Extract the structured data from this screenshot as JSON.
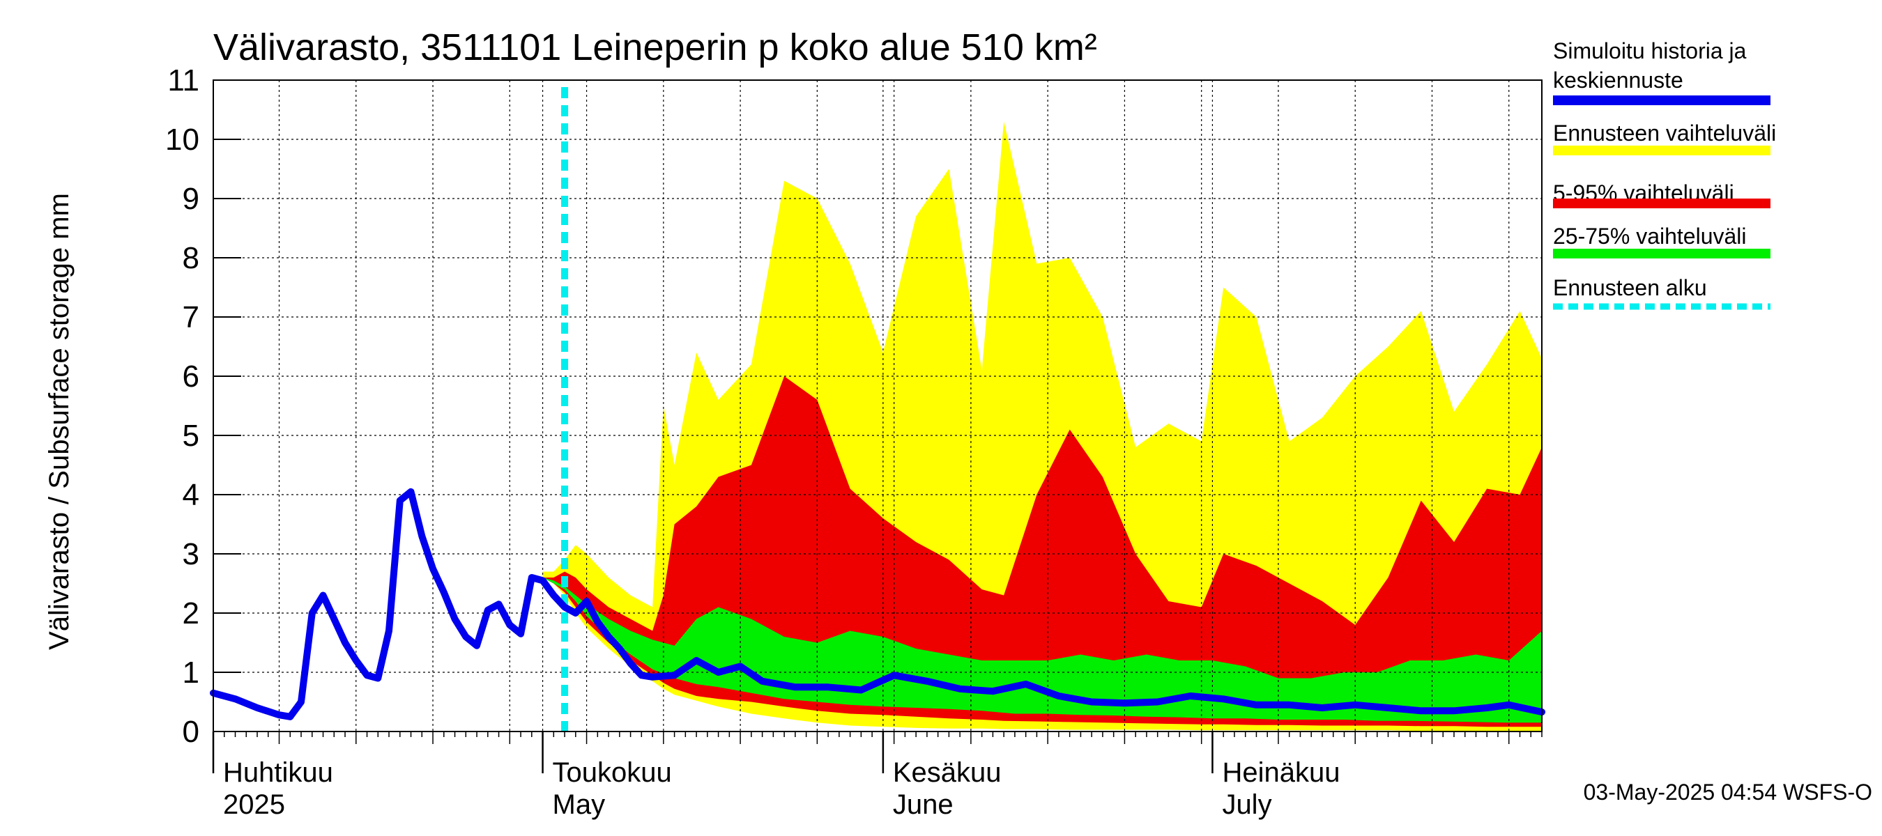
{
  "chart_data": {
    "type": "area",
    "title": "Välivarasto, 3511101 Leineperin p koko alue 510 km²",
    "ylabel": "Välivarasto / Subsurface storage  mm",
    "ylim": [
      0,
      11
    ],
    "yticks": [
      0,
      1,
      2,
      3,
      4,
      5,
      6,
      7,
      8,
      9,
      10,
      11
    ],
    "x_range": [
      "2025-04-01",
      "2025-07-31"
    ],
    "month_labels": [
      {
        "fi": "Huhtikuu",
        "en": "2025",
        "date": "2025-04-01"
      },
      {
        "fi": "Toukokuu",
        "en": "May",
        "date": "2025-05-01"
      },
      {
        "fi": "Kesäkuu",
        "en": "June",
        "date": "2025-06-01"
      },
      {
        "fi": "Heinäkuu",
        "en": "July",
        "date": "2025-07-01"
      }
    ],
    "forecast_start": "2025-05-03",
    "legend": [
      {
        "label": "Simuloitu historia ja",
        "label2": "keskiennuste",
        "color": "#0000ee",
        "style": "line"
      },
      {
        "label": "Ennusteen vaihteluväli",
        "color": "#ffff00",
        "style": "band"
      },
      {
        "label": "5-95% vaihteluväli",
        "color": "#ee0000",
        "style": "band"
      },
      {
        "label": "25-75% vaihteluväli",
        "color": "#00ee00",
        "style": "band"
      },
      {
        "label": "Ennusteen alku",
        "color": "#00eeee",
        "style": "dashed"
      }
    ],
    "series": [
      {
        "name": "Simuloitu historia ja keskiennuste",
        "x": [
          "2025-04-01",
          "2025-04-03",
          "2025-04-05",
          "2025-04-07",
          "2025-04-08",
          "2025-04-09",
          "2025-04-10",
          "2025-04-11",
          "2025-04-12",
          "2025-04-13",
          "2025-04-14",
          "2025-04-15",
          "2025-04-16",
          "2025-04-17",
          "2025-04-18",
          "2025-04-19",
          "2025-04-20",
          "2025-04-21",
          "2025-04-22",
          "2025-04-23",
          "2025-04-24",
          "2025-04-25",
          "2025-04-26",
          "2025-04-27",
          "2025-04-28",
          "2025-04-29",
          "2025-04-30",
          "2025-05-01",
          "2025-05-02",
          "2025-05-03",
          "2025-05-04",
          "2025-05-05",
          "2025-05-06",
          "2025-05-07",
          "2025-05-08",
          "2025-05-09",
          "2025-05-10",
          "2025-05-11",
          "2025-05-13",
          "2025-05-15",
          "2025-05-17",
          "2025-05-19",
          "2025-05-21",
          "2025-05-24",
          "2025-05-27",
          "2025-05-30",
          "2025-06-02",
          "2025-06-05",
          "2025-06-08",
          "2025-06-11",
          "2025-06-14",
          "2025-06-17",
          "2025-06-20",
          "2025-06-23",
          "2025-06-26",
          "2025-06-29",
          "2025-07-02",
          "2025-07-05",
          "2025-07-08",
          "2025-07-11",
          "2025-07-14",
          "2025-07-17",
          "2025-07-20",
          "2025-07-23",
          "2025-07-26",
          "2025-07-28",
          "2025-07-31"
        ],
        "values": [
          0.65,
          0.55,
          0.4,
          0.28,
          0.25,
          0.5,
          2.0,
          2.3,
          1.9,
          1.5,
          1.2,
          0.95,
          0.9,
          1.7,
          3.9,
          4.05,
          3.3,
          2.75,
          2.35,
          1.9,
          1.6,
          1.45,
          2.05,
          2.15,
          1.8,
          1.65,
          2.6,
          2.55,
          2.3,
          2.1,
          2.0,
          2.2,
          1.85,
          1.6,
          1.4,
          1.15,
          0.95,
          0.92,
          0.95,
          1.2,
          1.0,
          1.1,
          0.85,
          0.75,
          0.75,
          0.7,
          0.95,
          0.85,
          0.72,
          0.68,
          0.8,
          0.6,
          0.5,
          0.48,
          0.5,
          0.6,
          0.55,
          0.45,
          0.45,
          0.4,
          0.45,
          0.4,
          0.35,
          0.35,
          0.4,
          0.45,
          0.33
        ]
      },
      {
        "name": "Ennusteen vaihteluväli",
        "x": [
          "2025-05-01",
          "2025-05-02",
          "2025-05-03",
          "2025-05-04",
          "2025-05-05",
          "2025-05-07",
          "2025-05-09",
          "2025-05-11",
          "2025-05-12",
          "2025-05-13",
          "2025-05-15",
          "2025-05-17",
          "2025-05-20",
          "2025-05-23",
          "2025-05-26",
          "2025-05-29",
          "2025-06-01",
          "2025-06-04",
          "2025-06-07",
          "2025-06-10",
          "2025-06-12",
          "2025-06-15",
          "2025-06-18",
          "2025-06-21",
          "2025-06-24",
          "2025-06-27",
          "2025-06-30",
          "2025-07-02",
          "2025-07-05",
          "2025-07-08",
          "2025-07-11",
          "2025-07-14",
          "2025-07-17",
          "2025-07-20",
          "2025-07-23",
          "2025-07-26",
          "2025-07-29",
          "2025-07-31"
        ],
        "values": [
          2.7,
          2.7,
          2.9,
          3.15,
          3.0,
          2.6,
          2.3,
          2.1,
          5.5,
          4.5,
          6.4,
          5.6,
          6.2,
          9.3,
          9.0,
          7.9,
          6.4,
          8.7,
          9.5,
          6.1,
          10.3,
          7.9,
          8.0,
          7.0,
          4.8,
          5.2,
          4.9,
          7.5,
          7.0,
          4.9,
          5.3,
          6.0,
          6.5,
          7.1,
          5.4,
          6.2,
          7.1,
          6.3
        ],
        "values_low": [
          2.6,
          2.5,
          2.3,
          2.0,
          1.75,
          1.4,
          1.1,
          0.85,
          0.72,
          0.62,
          0.52,
          0.42,
          0.3,
          0.22,
          0.15,
          0.1,
          0.08,
          0.06,
          0.05,
          0.05,
          0.04,
          0.04,
          0.03,
          0.03,
          0.03,
          0.03,
          0.02,
          0.02,
          0.02,
          0.02,
          0.02,
          0.02,
          0.02,
          0.01,
          0.01,
          0.01,
          0.01,
          0.01
        ]
      },
      {
        "name": "5-95% vaihteluväli",
        "x": [
          "2025-05-01",
          "2025-05-02",
          "2025-05-03",
          "2025-05-04",
          "2025-05-05",
          "2025-05-07",
          "2025-05-09",
          "2025-05-11",
          "2025-05-12",
          "2025-05-13",
          "2025-05-15",
          "2025-05-17",
          "2025-05-20",
          "2025-05-23",
          "2025-05-26",
          "2025-05-29",
          "2025-06-01",
          "2025-06-04",
          "2025-06-07",
          "2025-06-10",
          "2025-06-12",
          "2025-06-15",
          "2025-06-18",
          "2025-06-21",
          "2025-06-24",
          "2025-06-27",
          "2025-06-30",
          "2025-07-02",
          "2025-07-05",
          "2025-07-08",
          "2025-07-11",
          "2025-07-14",
          "2025-07-17",
          "2025-07-20",
          "2025-07-23",
          "2025-07-26",
          "2025-07-29",
          "2025-07-31"
        ],
        "values": [
          2.6,
          2.6,
          2.7,
          2.6,
          2.4,
          2.1,
          1.9,
          1.7,
          2.3,
          3.5,
          3.8,
          4.3,
          4.5,
          6.0,
          5.6,
          4.1,
          3.6,
          3.2,
          2.9,
          2.4,
          2.3,
          4.0,
          5.1,
          4.3,
          3.0,
          2.2,
          2.1,
          3.0,
          2.8,
          2.5,
          2.2,
          1.8,
          2.6,
          3.9,
          3.2,
          4.1,
          4.0,
          4.8
        ],
        "values_low": [
          2.6,
          2.5,
          2.35,
          2.1,
          1.85,
          1.5,
          1.2,
          0.95,
          0.82,
          0.72,
          0.6,
          0.55,
          0.5,
          0.42,
          0.35,
          0.3,
          0.28,
          0.25,
          0.22,
          0.2,
          0.18,
          0.17,
          0.16,
          0.15,
          0.14,
          0.13,
          0.12,
          0.12,
          0.11,
          0.11,
          0.1,
          0.1,
          0.1,
          0.09,
          0.09,
          0.08,
          0.08,
          0.08
        ]
      },
      {
        "name": "25-75% vaihteluväli",
        "x": [
          "2025-05-01",
          "2025-05-02",
          "2025-05-03",
          "2025-05-04",
          "2025-05-05",
          "2025-05-07",
          "2025-05-09",
          "2025-05-11",
          "2025-05-13",
          "2025-05-15",
          "2025-05-17",
          "2025-05-20",
          "2025-05-23",
          "2025-05-26",
          "2025-05-29",
          "2025-06-01",
          "2025-06-04",
          "2025-06-07",
          "2025-06-10",
          "2025-06-13",
          "2025-06-16",
          "2025-06-19",
          "2025-06-22",
          "2025-06-25",
          "2025-06-28",
          "2025-07-01",
          "2025-07-04",
          "2025-07-07",
          "2025-07-10",
          "2025-07-13",
          "2025-07-16",
          "2025-07-19",
          "2025-07-22",
          "2025-07-25",
          "2025-07-28",
          "2025-07-31"
        ],
        "values": [
          2.6,
          2.55,
          2.45,
          2.3,
          2.15,
          1.9,
          1.7,
          1.55,
          1.45,
          1.9,
          2.1,
          1.9,
          1.6,
          1.5,
          1.7,
          1.6,
          1.4,
          1.3,
          1.2,
          1.2,
          1.2,
          1.3,
          1.2,
          1.3,
          1.2,
          1.2,
          1.1,
          0.9,
          0.9,
          1.0,
          1.0,
          1.2,
          1.2,
          1.3,
          1.2,
          1.7
        ],
        "values_low": [
          2.6,
          2.5,
          2.4,
          2.2,
          1.95,
          1.6,
          1.3,
          1.05,
          0.9,
          0.8,
          0.75,
          0.65,
          0.55,
          0.5,
          0.45,
          0.42,
          0.4,
          0.38,
          0.35,
          0.3,
          0.3,
          0.28,
          0.27,
          0.25,
          0.24,
          0.22,
          0.22,
          0.2,
          0.2,
          0.2,
          0.18,
          0.18,
          0.17,
          0.16,
          0.15,
          0.15
        ]
      }
    ],
    "footer": "03-May-2025 04:54 WSFS-O"
  }
}
